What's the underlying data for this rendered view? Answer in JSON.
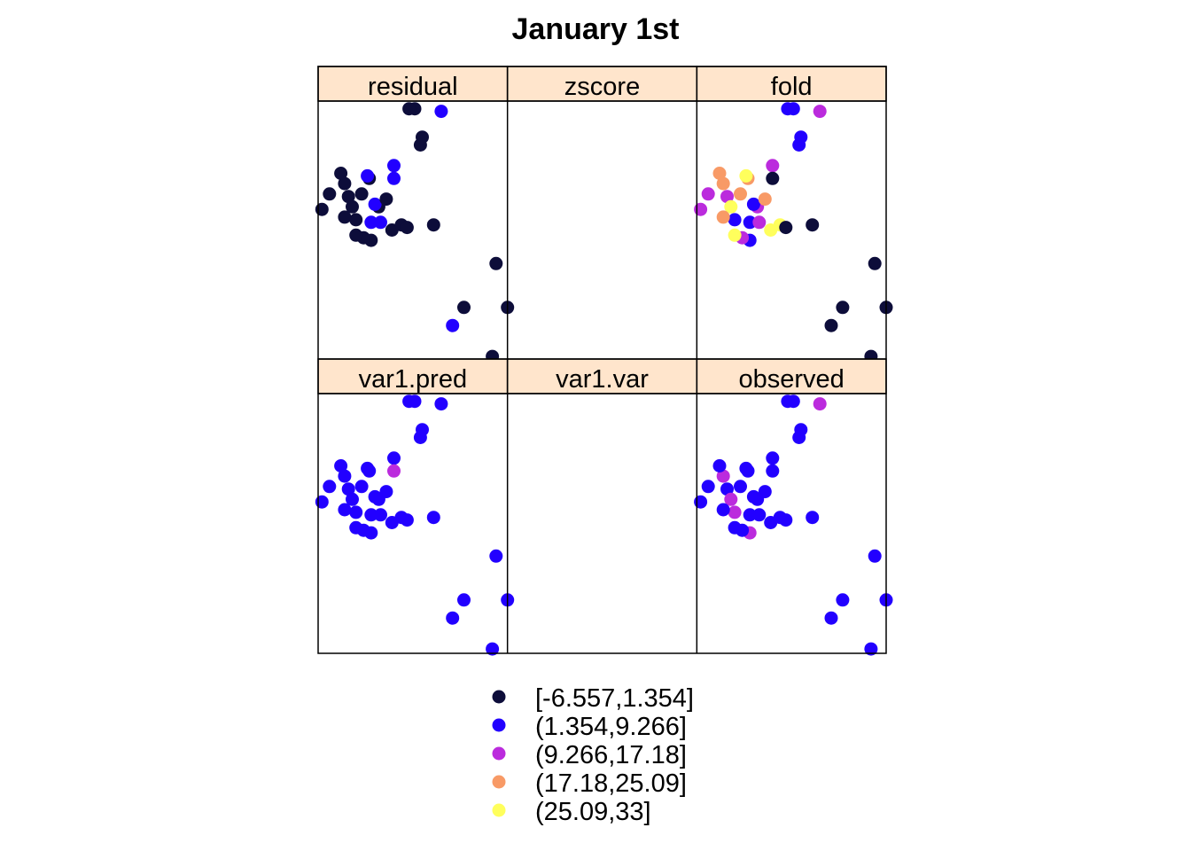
{
  "chart_data": {
    "type": "scatter",
    "title": "January 1st",
    "panels_layout": [
      [
        "var1.pred",
        "var1.var",
        "observed"
      ],
      [
        "residual",
        "zscore",
        "fold"
      ]
    ],
    "legend": {
      "placement": "bottom",
      "classes": [
        {
          "label": "[-6.557,1.354]",
          "color": "#0d0d3a"
        },
        {
          "label": "(1.354,9.266]",
          "color": "#2200ff"
        },
        {
          "label": "(9.266,17.18]",
          "color": "#bb2bdd"
        },
        {
          "label": "(17.18,25.09]",
          "color": "#f89a66"
        },
        {
          "label": "(25.09,33]",
          "color": "#ffff5c"
        }
      ]
    },
    "x": [
      0.51,
      0.48,
      0.65,
      0.54,
      0.55,
      0.06,
      0.4,
      0.32,
      0.23,
      0.27,
      0.39,
      0.44,
      0.16,
      0.02,
      0.14,
      0.12,
      0.2,
      0.28,
      0.18,
      0.24,
      0.14,
      0.2,
      0.26,
      0.28,
      0.3,
      0.33,
      0.36,
      0.4,
      0.47,
      0.61,
      0.77,
      0.94,
      1.0,
      0.92,
      0.71
    ],
    "y": [
      0.97,
      0.97,
      0.96,
      0.83,
      0.86,
      0.64,
      0.75,
      0.59,
      0.64,
      0.7,
      0.5,
      0.52,
      0.63,
      0.58,
      0.68,
      0.72,
      0.54,
      0.46,
      0.59,
      0.47,
      0.55,
      0.48,
      0.71,
      0.53,
      0.6,
      0.53,
      0.62,
      0.7,
      0.51,
      0.52,
      0.2,
      0.37,
      0.2,
      0.01,
      0.13
    ],
    "series": [
      {
        "name": "residual",
        "classes": [
          0,
          0,
          1,
          0,
          0,
          0,
          1,
          0,
          0,
          0,
          0,
          0,
          0,
          0,
          0,
          0,
          0,
          0,
          0,
          0,
          0,
          0,
          1,
          1,
          1,
          1,
          0,
          1,
          0,
          0,
          0,
          0,
          0,
          0,
          1
        ]
      },
      {
        "name": "zscore",
        "classes": []
      },
      {
        "name": "fold",
        "classes": [
          1,
          1,
          2,
          1,
          1,
          2,
          2,
          2,
          3,
          3,
          4,
          4,
          2,
          2,
          3,
          3,
          1,
          1,
          4,
          2,
          3,
          4,
          4,
          1,
          1,
          2,
          3,
          0,
          0,
          0,
          0,
          0,
          0,
          0,
          0
        ]
      },
      {
        "name": "var1.pred",
        "classes": [
          1,
          1,
          1,
          1,
          1,
          1,
          1,
          1,
          1,
          1,
          1,
          1,
          1,
          1,
          1,
          1,
          1,
          1,
          1,
          1,
          1,
          1,
          1,
          1,
          1,
          1,
          1,
          2,
          1,
          1,
          1,
          1,
          1,
          1,
          1
        ]
      },
      {
        "name": "var1.var",
        "classes": []
      },
      {
        "name": "observed",
        "classes": [
          1,
          1,
          2,
          1,
          1,
          1,
          1,
          1,
          1,
          1,
          1,
          1,
          1,
          1,
          2,
          1,
          2,
          2,
          2,
          1,
          1,
          1,
          1,
          1,
          1,
          1,
          1,
          1,
          1,
          1,
          1,
          1,
          1,
          1,
          1
        ]
      }
    ]
  }
}
